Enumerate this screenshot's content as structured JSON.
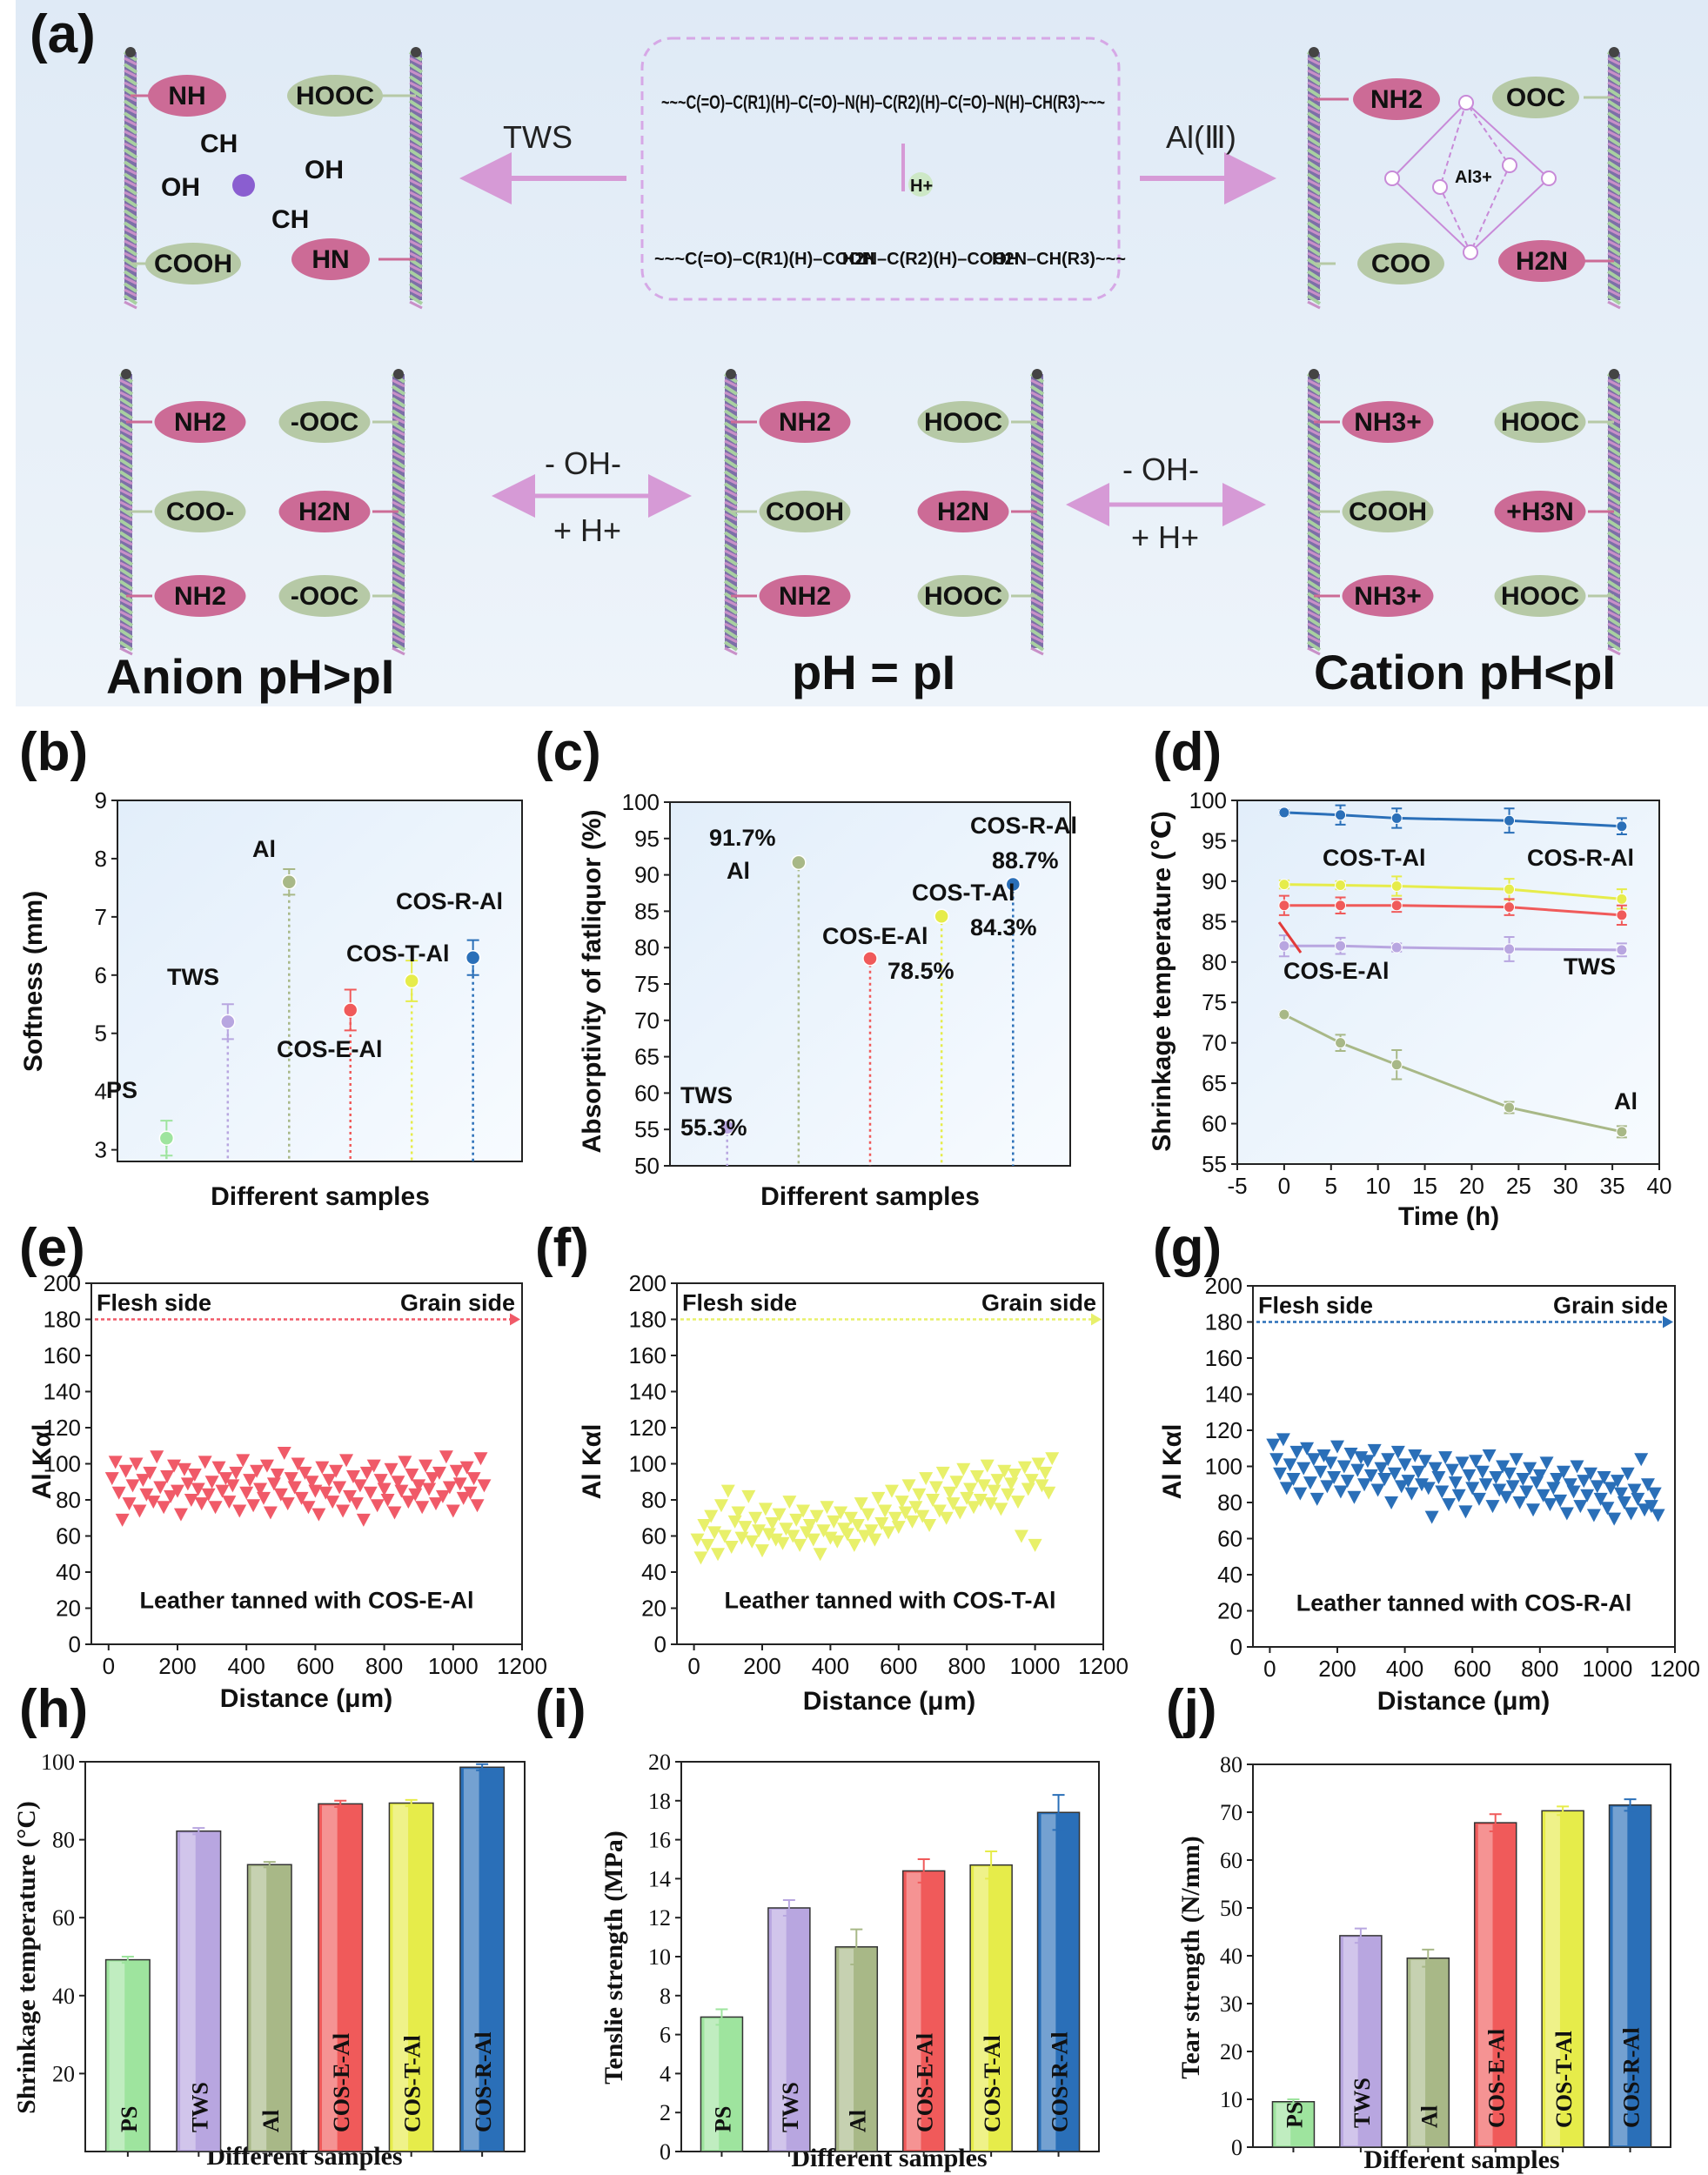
{
  "panel_a": {
    "label": "(a)",
    "top_left": {
      "groups": [
        "NH",
        "HOOC",
        "COOH",
        "HN"
      ],
      "chain": [
        "CH",
        "OH",
        "OH",
        "CH"
      ]
    },
    "top_middle": {
      "peptide_chain": "~~~C(=O)–C(R1)(H)–C(=O)–N(H)–C(R2)(H)–C(=O)–N(H)–CH(R3)~~~",
      "catalyst": "H+",
      "products": [
        "~~~C(=O)–C(R1)(H)–COOH",
        "H2N–C(R2)(H)–COOH",
        "H2N–CH(R3)~~~"
      ]
    },
    "top_right": {
      "groups": [
        "NH2",
        "OOC",
        "COO",
        "H2N"
      ],
      "center_ion": "Al3+"
    },
    "arrow_left_label": "TWS",
    "arrow_right_label": "Al(Ⅲ)",
    "bottom_states": [
      {
        "title": "Anion pH>pI",
        "left": [
          "NH2",
          "COO-",
          "NH2"
        ],
        "right": [
          "-OOC",
          "H2N",
          "-OOC"
        ]
      },
      {
        "title": "pH = pI",
        "left": [
          "NH2",
          "COOH",
          "NH2"
        ],
        "right": [
          "HOOC",
          "H2N",
          "HOOC"
        ]
      },
      {
        "title": "Cation pH<pI",
        "left": [
          "NH3+",
          "COOH",
          "NH3+"
        ],
        "right": [
          "HOOC",
          "+H3N",
          "HOOC"
        ]
      }
    ],
    "eq_left": {
      "top": "- OH-",
      "bottom": "+ H+"
    },
    "eq_right": {
      "top": "- OH-",
      "bottom": "+ H+"
    }
  },
  "chart_data": [
    {
      "id": "b",
      "label": "(b)",
      "type": "scatter",
      "xlabel": "Different samples",
      "ylabel": "Softness (mm)",
      "ylim": [
        2.8,
        9
      ],
      "yticks": [
        3,
        4,
        5,
        6,
        7,
        8,
        9
      ],
      "categories": [
        "PS",
        "TWS",
        "Al",
        "COS-E-Al",
        "COS-T-Al",
        "COS-R-Al"
      ],
      "values": [
        3.2,
        5.2,
        7.6,
        5.4,
        5.9,
        6.3
      ],
      "errors": [
        0.3,
        0.3,
        0.22,
        0.35,
        0.35,
        0.3
      ],
      "colors": [
        "#9ee49e",
        "#b8a6e0",
        "#a8b887",
        "#f05a5a",
        "#e6ec4a",
        "#2a6fb8"
      ]
    },
    {
      "id": "c",
      "label": "(c)",
      "type": "scatter",
      "xlabel": "Different samples",
      "ylabel": "Absorptivity of fatliquor (%)",
      "ylim": [
        50,
        100
      ],
      "yticks": [
        50,
        55,
        60,
        65,
        70,
        75,
        80,
        85,
        90,
        95,
        100
      ],
      "categories": [
        "TWS",
        "Al",
        "COS-E-Al",
        "COS-T-Al",
        "COS-R-Al"
      ],
      "values": [
        55.3,
        91.7,
        78.5,
        84.3,
        88.7
      ],
      "value_labels": [
        "55.3%",
        "91.7%",
        "78.5%",
        "84.3%",
        "88.7%"
      ],
      "colors": [
        "#b8a6e0",
        "#a8b887",
        "#f05a5a",
        "#e6ec4a",
        "#2a6fb8"
      ]
    },
    {
      "id": "d",
      "label": "(d)",
      "type": "line",
      "xlabel": "Time (h)",
      "ylabel": "Shrinkage temperature (℃)",
      "xlim": [
        -5,
        40
      ],
      "ylim": [
        55,
        100
      ],
      "xticks": [
        -5,
        0,
        5,
        10,
        15,
        20,
        25,
        30,
        35,
        40
      ],
      "yticks": [
        55,
        60,
        65,
        70,
        75,
        80,
        85,
        90,
        95,
        100
      ],
      "x": [
        0,
        6,
        12,
        24,
        36
      ],
      "series": [
        {
          "name": "COS-R-Al",
          "values": [
            98.5,
            98.2,
            97.8,
            97.5,
            96.8
          ],
          "errors": [
            0.3,
            1.2,
            1.2,
            1.5,
            1.0
          ],
          "color": "#2a6fb8"
        },
        {
          "name": "COS-T-Al",
          "values": [
            89.6,
            89.5,
            89.4,
            89.0,
            87.8
          ],
          "errors": [
            0.5,
            0.5,
            1.2,
            1.3,
            1.2
          ],
          "color": "#e6ec4a"
        },
        {
          "name": "COS-E-Al",
          "values": [
            87.0,
            87.0,
            87.0,
            86.8,
            85.8
          ],
          "errors": [
            1.2,
            1.0,
            0.8,
            1.0,
            1.2
          ],
          "color": "#f05a5a"
        },
        {
          "name": "TWS",
          "values": [
            82.0,
            82.0,
            81.8,
            81.6,
            81.5
          ],
          "errors": [
            1.3,
            1.0,
            0.5,
            1.5,
            0.8
          ],
          "color": "#b8a6e0"
        },
        {
          "name": "Al",
          "values": [
            73.5,
            70.0,
            67.3,
            62.0,
            59.0
          ],
          "errors": [
            0.3,
            1.0,
            1.8,
            0.7,
            0.7
          ],
          "color": "#a8b887"
        }
      ]
    },
    {
      "id": "e",
      "label": "(e)",
      "type": "scatter",
      "xlabel": "Distance (μm)",
      "ylabel": "Al Kαl",
      "xlim": [
        -50,
        1200
      ],
      "ylim": [
        0,
        200
      ],
      "xticks": [
        0,
        200,
        400,
        600,
        800,
        1000,
        1200
      ],
      "yticks": [
        0,
        20,
        40,
        60,
        80,
        100,
        120,
        140,
        160,
        180,
        200
      ],
      "left_note": "Flesh side",
      "right_note": "Grain side",
      "caption": "Leather tanned with COS-E-Al",
      "color": "#f05a68",
      "x": [
        10,
        20,
        30,
        40,
        50,
        60,
        70,
        80,
        90,
        100,
        110,
        120,
        130,
        140,
        150,
        160,
        170,
        180,
        190,
        200,
        210,
        220,
        230,
        240,
        250,
        260,
        270,
        280,
        290,
        300,
        310,
        320,
        330,
        340,
        350,
        360,
        370,
        380,
        390,
        400,
        410,
        420,
        430,
        440,
        450,
        460,
        470,
        480,
        490,
        500,
        510,
        520,
        530,
        540,
        550,
        560,
        570,
        580,
        590,
        600,
        610,
        620,
        630,
        640,
        650,
        660,
        670,
        680,
        690,
        700,
        710,
        720,
        730,
        740,
        750,
        760,
        770,
        780,
        790,
        800,
        810,
        820,
        830,
        840,
        850,
        860,
        870,
        880,
        890,
        900,
        910,
        920,
        930,
        940,
        950,
        960,
        970,
        980,
        990,
        1000,
        1010,
        1020,
        1030,
        1040,
        1050,
        1060,
        1070,
        1080,
        1090
      ],
      "y": [
        92,
        101,
        84,
        69,
        96,
        78,
        88,
        100,
        74,
        91,
        83,
        95,
        79,
        104,
        87,
        76,
        93,
        82,
        99,
        85,
        72,
        97,
        89,
        80,
        94,
        86,
        78,
        101,
        83,
        90,
        76,
        98,
        85,
        92,
        79,
        88,
        95,
        74,
        102,
        84,
        91,
        77,
        96,
        86,
        81,
        99,
        73,
        89,
        94,
        83,
        106,
        78,
        92,
        87,
        100,
        81,
        95,
        76,
        90,
        85,
        72,
        98,
        84,
        91,
        79,
        96,
        87,
        74,
        102,
        82,
        93,
        78,
        88,
        69,
        95,
        84,
        99,
        77,
        91,
        86,
        80,
        97,
        73,
        90,
        85,
        101,
        79,
        94,
        83,
        88,
        76,
        99,
        86,
        92,
        78,
        95,
        82,
        104,
        87,
        74,
        96,
        89,
        81,
        98,
        84,
        92,
        77,
        103,
        88
      ],
      "y_series_note": "point values"
    },
    {
      "id": "f",
      "label": "(f)",
      "type": "scatter",
      "xlabel": "Distance (μm)",
      "ylabel": "Al Kαl",
      "xlim": [
        -50,
        1200
      ],
      "ylim": [
        0,
        200
      ],
      "xticks": [
        0,
        200,
        400,
        600,
        800,
        1000,
        1200
      ],
      "yticks": [
        0,
        20,
        40,
        60,
        80,
        100,
        120,
        140,
        160,
        180,
        200
      ],
      "left_note": "Flesh side",
      "right_note": "Grain side",
      "caption": "Leather tanned with COS-T-Al",
      "color": "#e8f06a",
      "x": [
        10,
        20,
        30,
        40,
        50,
        60,
        70,
        80,
        90,
        100,
        110,
        120,
        130,
        140,
        150,
        160,
        170,
        180,
        190,
        200,
        210,
        220,
        230,
        240,
        250,
        260,
        270,
        280,
        290,
        300,
        310,
        320,
        330,
        340,
        350,
        360,
        370,
        380,
        390,
        400,
        410,
        420,
        430,
        440,
        450,
        460,
        470,
        480,
        490,
        500,
        510,
        520,
        530,
        540,
        550,
        560,
        570,
        580,
        590,
        600,
        610,
        620,
        630,
        640,
        650,
        660,
        670,
        680,
        690,
        700,
        710,
        720,
        730,
        740,
        750,
        760,
        770,
        780,
        790,
        800,
        810,
        820,
        830,
        840,
        850,
        860,
        870,
        880,
        890,
        900,
        910,
        920,
        930,
        940,
        950,
        960,
        970,
        980,
        990,
        1000,
        1010,
        1020,
        1030,
        1040,
        1050
      ],
      "y": [
        58,
        48,
        66,
        55,
        71,
        62,
        50,
        77,
        60,
        85,
        54,
        68,
        73,
        59,
        65,
        82,
        57,
        70,
        63,
        52,
        75,
        61,
        67,
        58,
        72,
        56,
        64,
        79,
        60,
        69,
        55,
        74,
        62,
        66,
        58,
        71,
        50,
        63,
        76,
        59,
        68,
        57,
        73,
        64,
        61,
        70,
        55,
        66,
        78,
        60,
        72,
        63,
        58,
        81,
        67,
        74,
        62,
        85,
        70,
        65,
        79,
        73,
        88,
        68,
        76,
        83,
        71,
        92,
        66,
        80,
        87,
        74,
        95,
        70,
        84,
        78,
        90,
        73,
        97,
        81,
        86,
        76,
        93,
        80,
        88,
        99,
        78,
        85,
        91,
        75,
        96,
        83,
        89,
        94,
        79,
        60,
        98,
        86,
        91,
        55,
        100,
        88,
        95,
        84,
        103
      ],
      "y_series_note": "point values"
    },
    {
      "id": "g",
      "label": "(g)",
      "type": "scatter",
      "xlabel": "Distance (μm)",
      "ylabel": "Al Kαl",
      "xlim": [
        -50,
        1200
      ],
      "ylim": [
        0,
        200
      ],
      "xticks": [
        0,
        200,
        400,
        600,
        800,
        1000,
        1200
      ],
      "yticks": [
        0,
        20,
        40,
        60,
        80,
        100,
        120,
        140,
        160,
        180,
        200
      ],
      "left_note": "Flesh side",
      "right_note": "Grain side",
      "caption": "Leather tanned with COS-R-Al",
      "color": "#2a6fb8",
      "x": [
        10,
        20,
        30,
        40,
        50,
        60,
        70,
        80,
        90,
        100,
        110,
        120,
        130,
        140,
        150,
        160,
        170,
        180,
        190,
        200,
        210,
        220,
        230,
        240,
        250,
        260,
        270,
        280,
        290,
        300,
        310,
        320,
        330,
        340,
        350,
        360,
        370,
        380,
        390,
        400,
        410,
        420,
        430,
        440,
        450,
        460,
        470,
        480,
        490,
        500,
        510,
        520,
        530,
        540,
        550,
        560,
        570,
        580,
        590,
        600,
        610,
        620,
        630,
        640,
        650,
        660,
        670,
        680,
        690,
        700,
        710,
        720,
        730,
        740,
        750,
        760,
        770,
        780,
        790,
        800,
        810,
        820,
        830,
        840,
        850,
        860,
        870,
        880,
        890,
        900,
        910,
        920,
        930,
        940,
        950,
        960,
        970,
        980,
        990,
        1000,
        1010,
        1020,
        1030,
        1040,
        1050,
        1060,
        1070,
        1080,
        1090,
        1100,
        1110,
        1120,
        1130,
        1140,
        1150
      ],
      "y": [
        112,
        104,
        96,
        115,
        88,
        101,
        93,
        108,
        85,
        99,
        110,
        91,
        104,
        82,
        97,
        106,
        89,
        102,
        94,
        111,
        86,
        100,
        92,
        107,
        83,
        98,
        105,
        90,
        103,
        95,
        109,
        87,
        99,
        93,
        104,
        80,
        96,
        108,
        89,
        101,
        92,
        85,
        106,
        97,
        90,
        103,
        88,
        72,
        99,
        94,
        86,
        105,
        79,
        98,
        91,
        84,
        102,
        75,
        95,
        88,
        103,
        82,
        97,
        90,
        106,
        78,
        94,
        87,
        100,
        83,
        96,
        89,
        104,
        80,
        93,
        86,
        99,
        76,
        91,
        95,
        84,
        102,
        79,
        88,
        93,
        81,
        97,
        74,
        90,
        86,
        100,
        78,
        92,
        84,
        96,
        73,
        89,
        82,
        94,
        77,
        88,
        71,
        92,
        85,
        80,
        96,
        74,
        87,
        82,
        104,
        76,
        90,
        78,
        85,
        73
      ],
      "y_series_note": "point values"
    },
    {
      "id": "h",
      "label": "(h)",
      "type": "bar",
      "xlabel": "Different samples",
      "ylabel": "Shrinkage temperature (°C)",
      "ylim": [
        0,
        100
      ],
      "yticks": [
        20,
        40,
        60,
        80,
        100
      ],
      "categories": [
        "PS",
        "TWS",
        "Al",
        "COS-E-Al",
        "COS-T-Al",
        "COS-R-Al"
      ],
      "values": [
        49.2,
        82.2,
        73.6,
        89.2,
        89.4,
        98.6
      ],
      "errors": [
        0.8,
        0.8,
        0.7,
        0.8,
        0.8,
        0.8
      ],
      "colors": [
        "#9ee49e",
        "#b8a6e0",
        "#a8b887",
        "#f05a5a",
        "#e6ec4a",
        "#2a6fb8"
      ]
    },
    {
      "id": "i",
      "label": "(i)",
      "type": "bar",
      "xlabel": "Different samples",
      "ylabel": "Tenslie strength (MPa)",
      "ylim": [
        0,
        20
      ],
      "yticks": [
        0,
        2,
        4,
        6,
        8,
        10,
        12,
        14,
        16,
        18,
        20
      ],
      "categories": [
        "PS",
        "TWS",
        "Al",
        "COS-E-Al",
        "COS-T-Al",
        "COS-R-Al"
      ],
      "values": [
        6.9,
        12.5,
        10.5,
        14.4,
        14.7,
        17.4
      ],
      "errors": [
        0.4,
        0.4,
        0.9,
        0.6,
        0.7,
        0.9
      ],
      "colors": [
        "#9ee49e",
        "#b8a6e0",
        "#a8b887",
        "#f05a5a",
        "#e6ec4a",
        "#2a6fb8"
      ]
    },
    {
      "id": "j",
      "label": "(j)",
      "type": "bar",
      "xlabel": "Different samples",
      "ylabel": "Tear strength (N/mm)",
      "ylim": [
        0,
        80
      ],
      "yticks": [
        0,
        10,
        20,
        30,
        40,
        50,
        60,
        70,
        80
      ],
      "categories": [
        "PS",
        "TWS",
        "Al",
        "COS-E-Al",
        "COS-T-Al",
        "COS-R-Al"
      ],
      "values": [
        9.5,
        44.2,
        39.5,
        67.8,
        70.3,
        71.5
      ],
      "errors": [
        0.5,
        1.5,
        1.8,
        1.8,
        0.9,
        1.2
      ],
      "colors": [
        "#9ee49e",
        "#b8a6e0",
        "#a8b887",
        "#f05a5a",
        "#e6ec4a",
        "#2a6fb8"
      ]
    }
  ]
}
